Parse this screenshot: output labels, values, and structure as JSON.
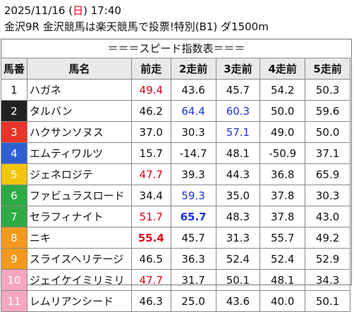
{
  "header": {
    "date_prefix": "2025/11/16 (",
    "weekday": "日",
    "date_suffix": ") 17:40",
    "race_line": "金沢9R 金沢競馬は楽天競馬で投票!特別(B1) ダ1500m"
  },
  "subtitle": "＝＝＝スピード指数表＝＝＝",
  "columns": [
    "馬番",
    "馬名",
    "前走",
    "2走前",
    "3走前",
    "4走前",
    "5走前"
  ],
  "rows": [
    {
      "num": "1",
      "name": "ハガネ",
      "v": [
        "49.4",
        "43.6",
        "45.7",
        "54.2",
        "50.3"
      ]
    },
    {
      "num": "2",
      "name": "タルバン",
      "v": [
        "46.2",
        "64.4",
        "60.3",
        "50.0",
        "59.6"
      ]
    },
    {
      "num": "3",
      "name": "ハクサンソヌス",
      "v": [
        "37.0",
        "30.3",
        "57.1",
        "49.0",
        "50.0"
      ]
    },
    {
      "num": "4",
      "name": "エムティワルツ",
      "v": [
        "15.7",
        "-14.7",
        "48.1",
        "-50.9",
        "37.1"
      ]
    },
    {
      "num": "5",
      "name": "ジェネロジテ",
      "v": [
        "47.7",
        "39.3",
        "44.3",
        "36.8",
        "65.9"
      ]
    },
    {
      "num": "6",
      "name": "ファビュラスロード",
      "v": [
        "34.4",
        "59.3",
        "35.0",
        "37.8",
        "30.3"
      ]
    },
    {
      "num": "7",
      "name": "セラフィナイト",
      "v": [
        "51.7",
        "65.7",
        "48.3",
        "37.8",
        "43.0"
      ]
    },
    {
      "num": "8",
      "name": "ニキ",
      "v": [
        "55.4",
        "45.7",
        "31.3",
        "55.7",
        "49.2"
      ]
    },
    {
      "num": "9",
      "name": "スライスヘリテージ",
      "v": [
        "46.5",
        "36.3",
        "52.4",
        "52.4",
        "52.9"
      ]
    },
    {
      "num": "10",
      "name": "ジェイケイミリミリ",
      "v": [
        "47.7",
        "31.7",
        "50.1",
        "48.1",
        "34.3"
      ]
    },
    {
      "num": "11",
      "name": "レムリアンシード",
      "v": [
        "46.3",
        "25.0",
        "43.6",
        "40.0",
        "50.1"
      ]
    }
  ],
  "styles": {
    "gate_bg": [
      "#ffffff",
      "#222222",
      "#e8352c",
      "#2f5ed3",
      "#f2c60d",
      "#2eaa45",
      "#2eaa45",
      "#f39a1d",
      "#f39a1d",
      "#f6a6c0",
      "#f6a6c0"
    ],
    "gate_fg": [
      "#111111",
      "#ffffff",
      "#ffffff",
      "#ffffff",
      "#ffffff",
      "#ffffff",
      "#ffffff",
      "#ffffff",
      "#ffffff",
      "#ffffff",
      "#ffffff"
    ],
    "cells": [
      [
        "red",
        "",
        "",
        "",
        ""
      ],
      [
        "",
        "blue",
        "blue",
        "",
        ""
      ],
      [
        "",
        "",
        "blue",
        "",
        ""
      ],
      [
        "",
        "",
        "",
        "",
        ""
      ],
      [
        "red",
        "",
        "",
        "",
        ""
      ],
      [
        "",
        "blue",
        "",
        "",
        ""
      ],
      [
        "red",
        "blue bold",
        "",
        "",
        ""
      ],
      [
        "red bold",
        "",
        "",
        "",
        ""
      ],
      [
        "",
        "",
        "",
        "",
        ""
      ],
      [
        "red",
        "",
        "",
        "",
        ""
      ],
      [
        "",
        "",
        "",
        "",
        ""
      ]
    ]
  }
}
